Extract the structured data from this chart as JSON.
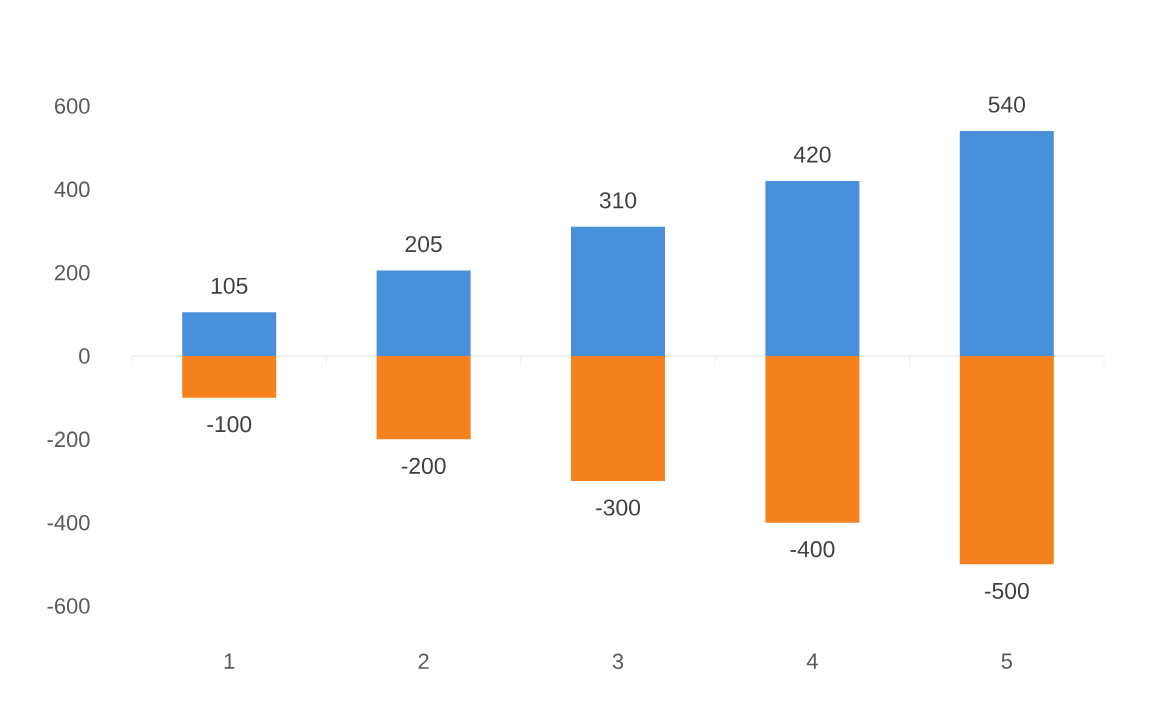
{
  "chart_data": {
    "type": "bar",
    "categories": [
      "1",
      "2",
      "3",
      "4",
      "5"
    ],
    "series": [
      {
        "color": "#4a8fd9",
        "values": [
          105,
          205,
          310,
          420,
          540
        ]
      },
      {
        "color": "#f5821f",
        "values": [
          -100,
          -200,
          -300,
          -400,
          -500
        ]
      }
    ],
    "stacked": true,
    "data_labels": true,
    "ylim": [
      -600,
      600
    ],
    "yticks": [
      -600,
      -400,
      -200,
      0,
      200,
      400,
      600
    ]
  }
}
